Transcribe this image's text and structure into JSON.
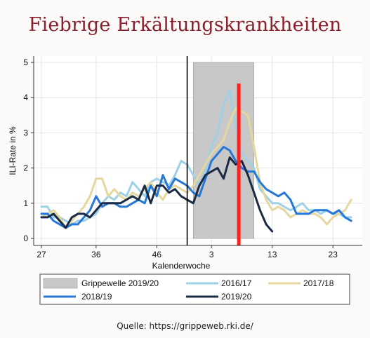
{
  "title": "Fiebrige Erkältungskrankheiten",
  "source": "Quelle: https://grippeweb.rki.de/",
  "chart_data": {
    "type": "line",
    "xlabel": "Kalenderwoche",
    "ylabel": "ILI-Rate in %",
    "ylim": [
      0,
      5
    ],
    "yticks": [
      "0",
      "1",
      "2",
      "3",
      "4",
      "5"
    ],
    "xtick_labels": [
      "27",
      "36",
      "46",
      "3",
      "13",
      "23"
    ],
    "xtick_week_index": [
      0,
      9,
      19,
      28,
      38,
      48
    ],
    "week_count": 52,
    "grid": true,
    "legend_position": "bottom",
    "shaded_region": {
      "label": "Grippewelle 2019/20",
      "start_week_index": 25,
      "end_week_index": 35,
      "color": "#c8c8c8"
    },
    "markers": [
      {
        "type": "vertical-line",
        "week_index": 24,
        "color": "#000000"
      },
      {
        "type": "vertical-line",
        "week_index": 32.5,
        "color": "#ff2020",
        "ymax": 4.4
      }
    ],
    "series": [
      {
        "name": "2016/17",
        "color": "#9ed0e6",
        "values": [
          0.9,
          0.9,
          0.6,
          0.6,
          0.5,
          0.4,
          0.5,
          0.5,
          0.6,
          0.7,
          1.0,
          1.2,
          1.1,
          1.3,
          1.2,
          1.6,
          1.4,
          1.2,
          1.6,
          1.7,
          1.6,
          1.5,
          1.8,
          2.2,
          2.1,
          1.8,
          1.5,
          1.9,
          2.6,
          3.0,
          3.8,
          4.2,
          3.2,
          2.4,
          2.2,
          2.0,
          1.4,
          1.2,
          1.0,
          1.0,
          0.9,
          0.8,
          0.9,
          1.0,
          0.8,
          0.8,
          0.7,
          0.8,
          0.7,
          0.7,
          0.6,
          0.6
        ]
      },
      {
        "name": "2017/18",
        "color": "#e5d79d",
        "values": [
          0.6,
          0.7,
          0.8,
          0.6,
          0.3,
          0.5,
          0.7,
          0.9,
          1.2,
          1.7,
          1.7,
          1.2,
          1.4,
          1.2,
          1.1,
          1.3,
          1.2,
          1.4,
          1.6,
          1.3,
          1.1,
          1.4,
          1.5,
          1.4,
          1.3,
          1.5,
          1.8,
          2.1,
          2.4,
          2.6,
          2.8,
          3.3,
          3.7,
          3.6,
          3.5,
          2.6,
          1.6,
          1.1,
          0.8,
          0.9,
          0.8,
          0.6,
          0.7,
          0.8,
          0.7,
          0.7,
          0.6,
          0.4,
          0.6,
          0.7,
          0.8,
          1.1
        ]
      },
      {
        "name": "2018/19",
        "color": "#2578d8",
        "values": [
          0.7,
          0.7,
          0.5,
          0.4,
          0.3,
          0.4,
          0.4,
          0.6,
          0.8,
          1.2,
          0.9,
          1.0,
          1.0,
          0.9,
          0.9,
          1.0,
          1.1,
          1.0,
          1.5,
          1.2,
          1.8,
          1.4,
          1.7,
          1.6,
          1.5,
          1.3,
          1.2,
          1.7,
          2.2,
          2.4,
          2.6,
          2.5,
          2.2,
          2.0,
          1.9,
          1.9,
          1.6,
          1.4,
          1.3,
          1.2,
          1.3,
          1.1,
          0.7,
          0.7,
          0.7,
          0.8,
          0.8,
          0.8,
          0.7,
          0.8,
          0.6,
          0.5
        ]
      },
      {
        "name": "2019/20",
        "color": "#1b2a44",
        "values": [
          0.6,
          0.6,
          0.7,
          0.5,
          0.3,
          0.6,
          0.7,
          0.7,
          0.6,
          0.8,
          1.0,
          1.0,
          1.0,
          1.0,
          1.1,
          1.2,
          1.1,
          1.5,
          1.0,
          1.5,
          1.5,
          1.3,
          1.4,
          1.2,
          1.1,
          1.0,
          1.5,
          1.8,
          1.9,
          2.0,
          1.7,
          2.3,
          2.1,
          2.2,
          1.8,
          1.3,
          0.8,
          0.4,
          0.2
        ]
      }
    ],
    "legend": [
      {
        "label": "Grippewelle 2019/20",
        "kind": "box",
        "color": "#c8c8c8"
      },
      {
        "label": "2016/17",
        "kind": "line",
        "color": "#9ed0e6"
      },
      {
        "label": "2017/18",
        "kind": "line",
        "color": "#e5d79d"
      },
      {
        "label": "2018/19",
        "kind": "line",
        "color": "#2578d8"
      },
      {
        "label": "2019/20",
        "kind": "line",
        "color": "#1b2a44"
      }
    ]
  }
}
